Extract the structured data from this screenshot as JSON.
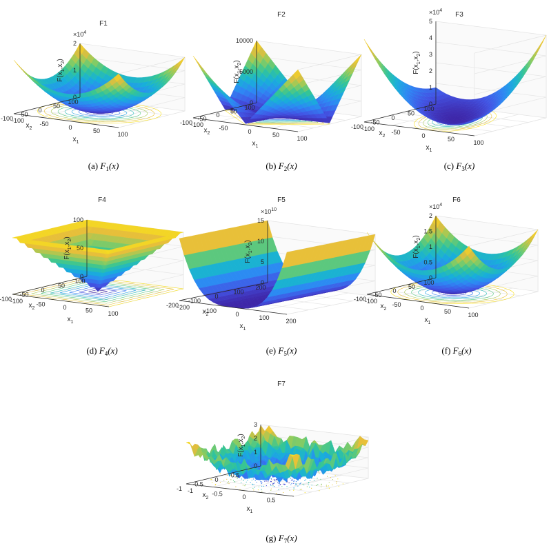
{
  "figure": {
    "caption_suffix": "(x)"
  },
  "palette": [
    "#3e26a8",
    "#4254e4",
    "#2e87f4",
    "#18b0d9",
    "#34c596",
    "#92cc5c",
    "#e6bd3b",
    "#f9e01c"
  ],
  "chart_data": [
    {
      "id": "F1",
      "type": "surface3d",
      "title": "F1",
      "caption_label": "(a)",
      "caption_fn": "F",
      "caption_sub": "1",
      "zlabel": "F(x1,x2)",
      "xlabel": "x1",
      "ylabel": "x2",
      "zexp": "×10",
      "zexp_pow": "4",
      "xlim": [
        -100,
        100
      ],
      "ylim": [
        -100,
        100
      ],
      "zlim": [
        0,
        2
      ],
      "xticks": [
        "-100",
        "-50",
        "0",
        "50",
        "100"
      ],
      "yticks": [
        "-100",
        "-50",
        "0",
        "50",
        "100"
      ],
      "zticks": [
        "1",
        "2"
      ],
      "zero_tick": "0",
      "function": "x1^2 + x2^2 (sphere, scaled 1e4)",
      "contours": "circles"
    },
    {
      "id": "F2",
      "type": "surface3d",
      "title": "F2",
      "caption_label": "(b)",
      "caption_fn": "F",
      "caption_sub": "2",
      "zlabel": "F(x1,x2)",
      "xlabel": "x1",
      "ylabel": "x2",
      "zexp": "",
      "zexp_pow": "",
      "xlim": [
        -100,
        100
      ],
      "ylim": [
        -100,
        100
      ],
      "zlim": [
        0,
        10000
      ],
      "xticks": [
        "-100",
        "-50",
        "0",
        "50",
        "100"
      ],
      "yticks": [
        "-100",
        "-50",
        "0",
        "50",
        "100"
      ],
      "zticks": [
        "5000",
        "10000"
      ],
      "zero_tick": "0",
      "function": "|x1|*|x2| + |x1| + |x2|",
      "contours": "diamonds"
    },
    {
      "id": "F3",
      "type": "surface3d",
      "title": "F3",
      "caption_label": "(c)",
      "caption_fn": "F",
      "caption_sub": "3",
      "zlabel": "F(x1,x2)",
      "xlabel": "x1",
      "ylabel": "x2",
      "zexp": "×10",
      "zexp_pow": "4",
      "xlim": [
        -100,
        100
      ],
      "ylim": [
        -100,
        100
      ],
      "zlim": [
        0,
        5
      ],
      "xticks": [
        "-100",
        "-50",
        "0",
        "50",
        "100"
      ],
      "yticks": [
        "-100",
        "-50",
        "0",
        "50",
        "100"
      ],
      "zticks": [
        "1",
        "2",
        "3",
        "4",
        "5"
      ],
      "zero_tick": "0",
      "function": "x1^2 + (x1+x2)^2",
      "contours": "ellipses"
    },
    {
      "id": "F4",
      "type": "surface3d",
      "title": "F4",
      "caption_label": "(d)",
      "caption_fn": "F",
      "caption_sub": "4",
      "zlabel": "F(x1,x2)",
      "xlabel": "x1",
      "ylabel": "x2",
      "zexp": "",
      "zexp_pow": "",
      "xlim": [
        -100,
        100
      ],
      "ylim": [
        -100,
        100
      ],
      "zlim": [
        0,
        100
      ],
      "xticks": [
        "-100",
        "-50",
        "0",
        "50",
        "100"
      ],
      "yticks": [
        "-100",
        "-50",
        "0",
        "50",
        "100"
      ],
      "zticks": [
        "50",
        "100"
      ],
      "zero_tick": "0",
      "function": "max(|x1|, |x2|)",
      "contours": "squares"
    },
    {
      "id": "F5",
      "type": "surface3d",
      "title": "F5",
      "caption_label": "(e)",
      "caption_fn": "F",
      "caption_sub": "5",
      "zlabel": "F(x1,x2)",
      "xlabel": "x1",
      "ylabel": "x2",
      "zexp": "×10",
      "zexp_pow": "10",
      "xlim": [
        -200,
        200
      ],
      "ylim": [
        -200,
        200
      ],
      "zlim": [
        0,
        15
      ],
      "xticks": [
        "-200",
        "-100",
        "0",
        "100",
        "200"
      ],
      "yticks": [
        "-200",
        "-100",
        "0",
        "100",
        "200"
      ],
      "zticks": [
        "5",
        "10",
        "15"
      ],
      "zero_tick": "0",
      "function": "Rosenbrock valley",
      "contours": "none"
    },
    {
      "id": "F6",
      "type": "surface3d",
      "title": "F6",
      "caption_label": "(f)",
      "caption_fn": "F",
      "caption_sub": "6",
      "zlabel": "F(x1,x2)",
      "xlabel": "x1",
      "ylabel": "x2",
      "zexp": "×10",
      "zexp_pow": "4",
      "xlim": [
        -100,
        100
      ],
      "ylim": [
        -100,
        100
      ],
      "zlim": [
        0,
        2
      ],
      "xticks": [
        "-100",
        "-50",
        "0",
        "50",
        "100"
      ],
      "yticks": [
        "-100",
        "-50",
        "0",
        "50",
        "100"
      ],
      "zticks": [
        "0.5",
        "1",
        "1.5",
        "2"
      ],
      "zero_tick": "0",
      "function": "step (x+0.5)^2",
      "contours": "circles"
    },
    {
      "id": "F7",
      "type": "surface3d",
      "title": "F7",
      "caption_label": "(g)",
      "caption_fn": "F",
      "caption_sub": "7",
      "zlabel": "F(x1,x2)",
      "xlabel": "x1",
      "ylabel": "x2",
      "zexp": "",
      "zexp_pow": "",
      "xlim": [
        -1,
        1
      ],
      "ylim": [
        -1,
        1
      ],
      "zlim": [
        0,
        3
      ],
      "xticks": [
        "-1",
        "-0.5",
        "0",
        "0.5",
        ""
      ],
      "yticks": [
        "-1",
        "-0.5",
        "0",
        "0.5",
        ""
      ],
      "zticks": [
        "1",
        "2",
        "3"
      ],
      "zero_tick": "0",
      "function": "quartic with noise",
      "contours": "noise"
    }
  ]
}
